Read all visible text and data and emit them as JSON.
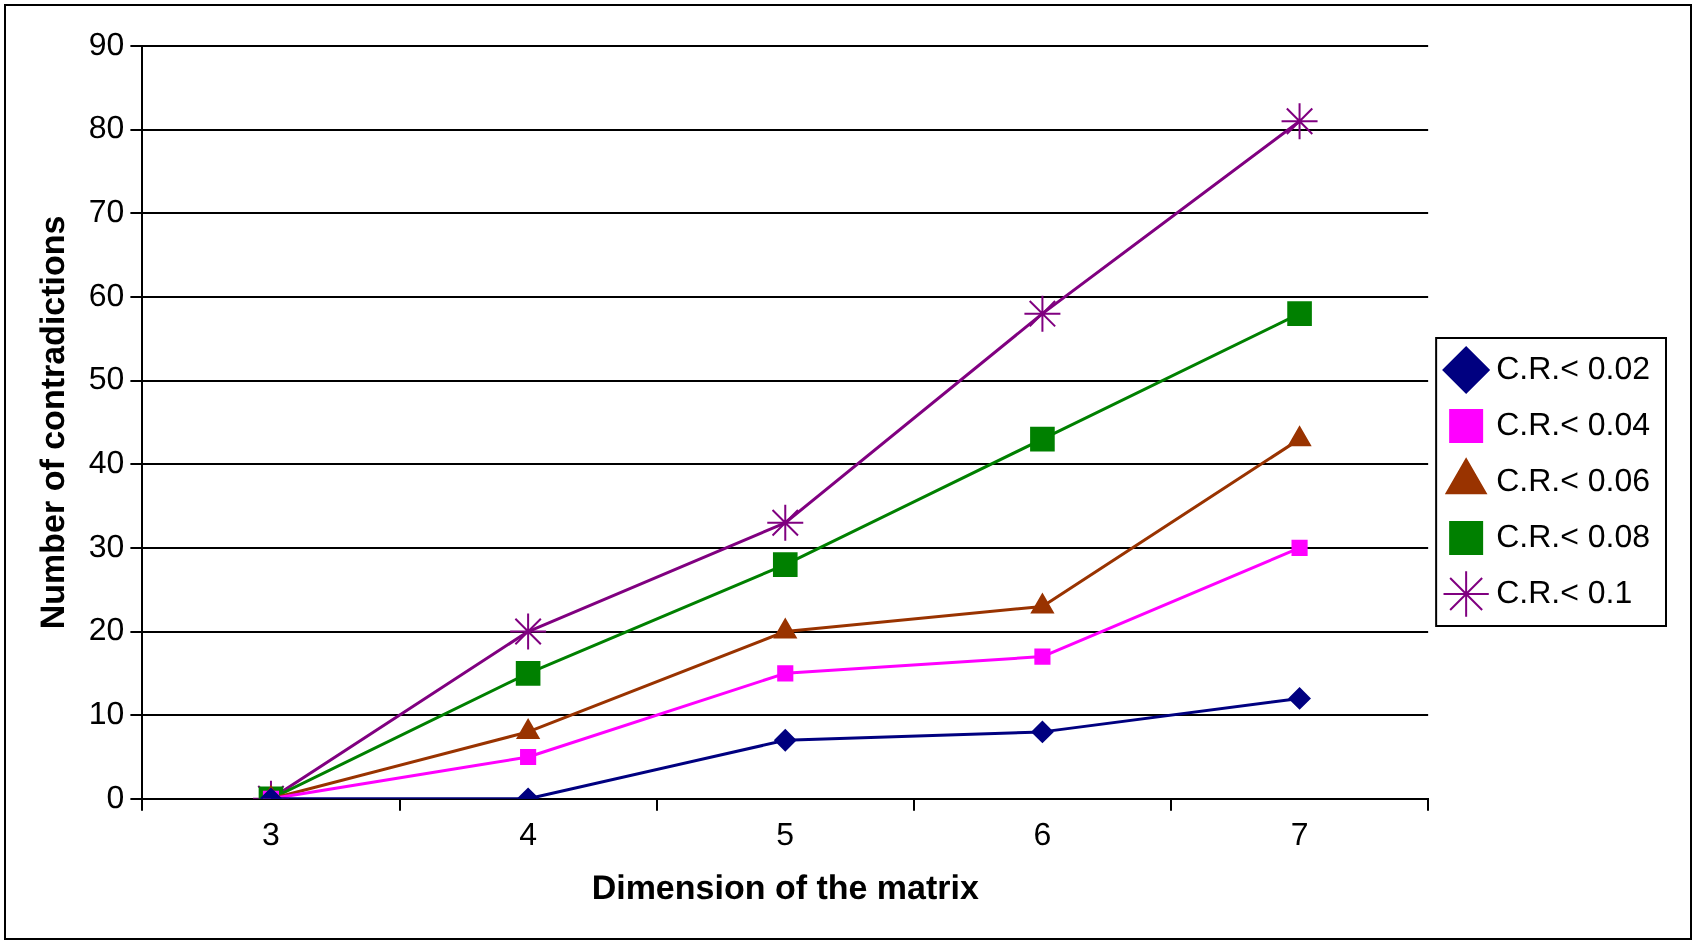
{
  "chart_data": {
    "type": "line",
    "xlabel": "Dimension of the matrix",
    "ylabel": "Number of contradictions",
    "categories": [
      "3",
      "4",
      "5",
      "6",
      "7"
    ],
    "ylim": [
      0,
      90
    ],
    "yticks": [
      0,
      10,
      20,
      30,
      40,
      50,
      60,
      70,
      80,
      90
    ],
    "grid": "y",
    "legend": "right",
    "series": [
      {
        "name": "C.R.< 0.02",
        "color": "#000080",
        "marker": "diamond",
        "values": [
          0,
          0,
          7,
          8,
          12
        ]
      },
      {
        "name": "C.R.< 0.04",
        "color": "#ff00ff",
        "marker": "square",
        "values": [
          0,
          5,
          15,
          17,
          30
        ]
      },
      {
        "name": "C.R.< 0.06",
        "color": "#993300",
        "marker": "triangle",
        "values": [
          0,
          8,
          20,
          23,
          43
        ]
      },
      {
        "name": "C.R.< 0.08",
        "color": "#008000",
        "marker": "square",
        "values": [
          0,
          15,
          28,
          43,
          58
        ]
      },
      {
        "name": "C.R.< 0.1",
        "color": "#800080",
        "marker": "cross",
        "values": [
          0,
          20,
          33,
          58,
          81
        ]
      }
    ]
  }
}
